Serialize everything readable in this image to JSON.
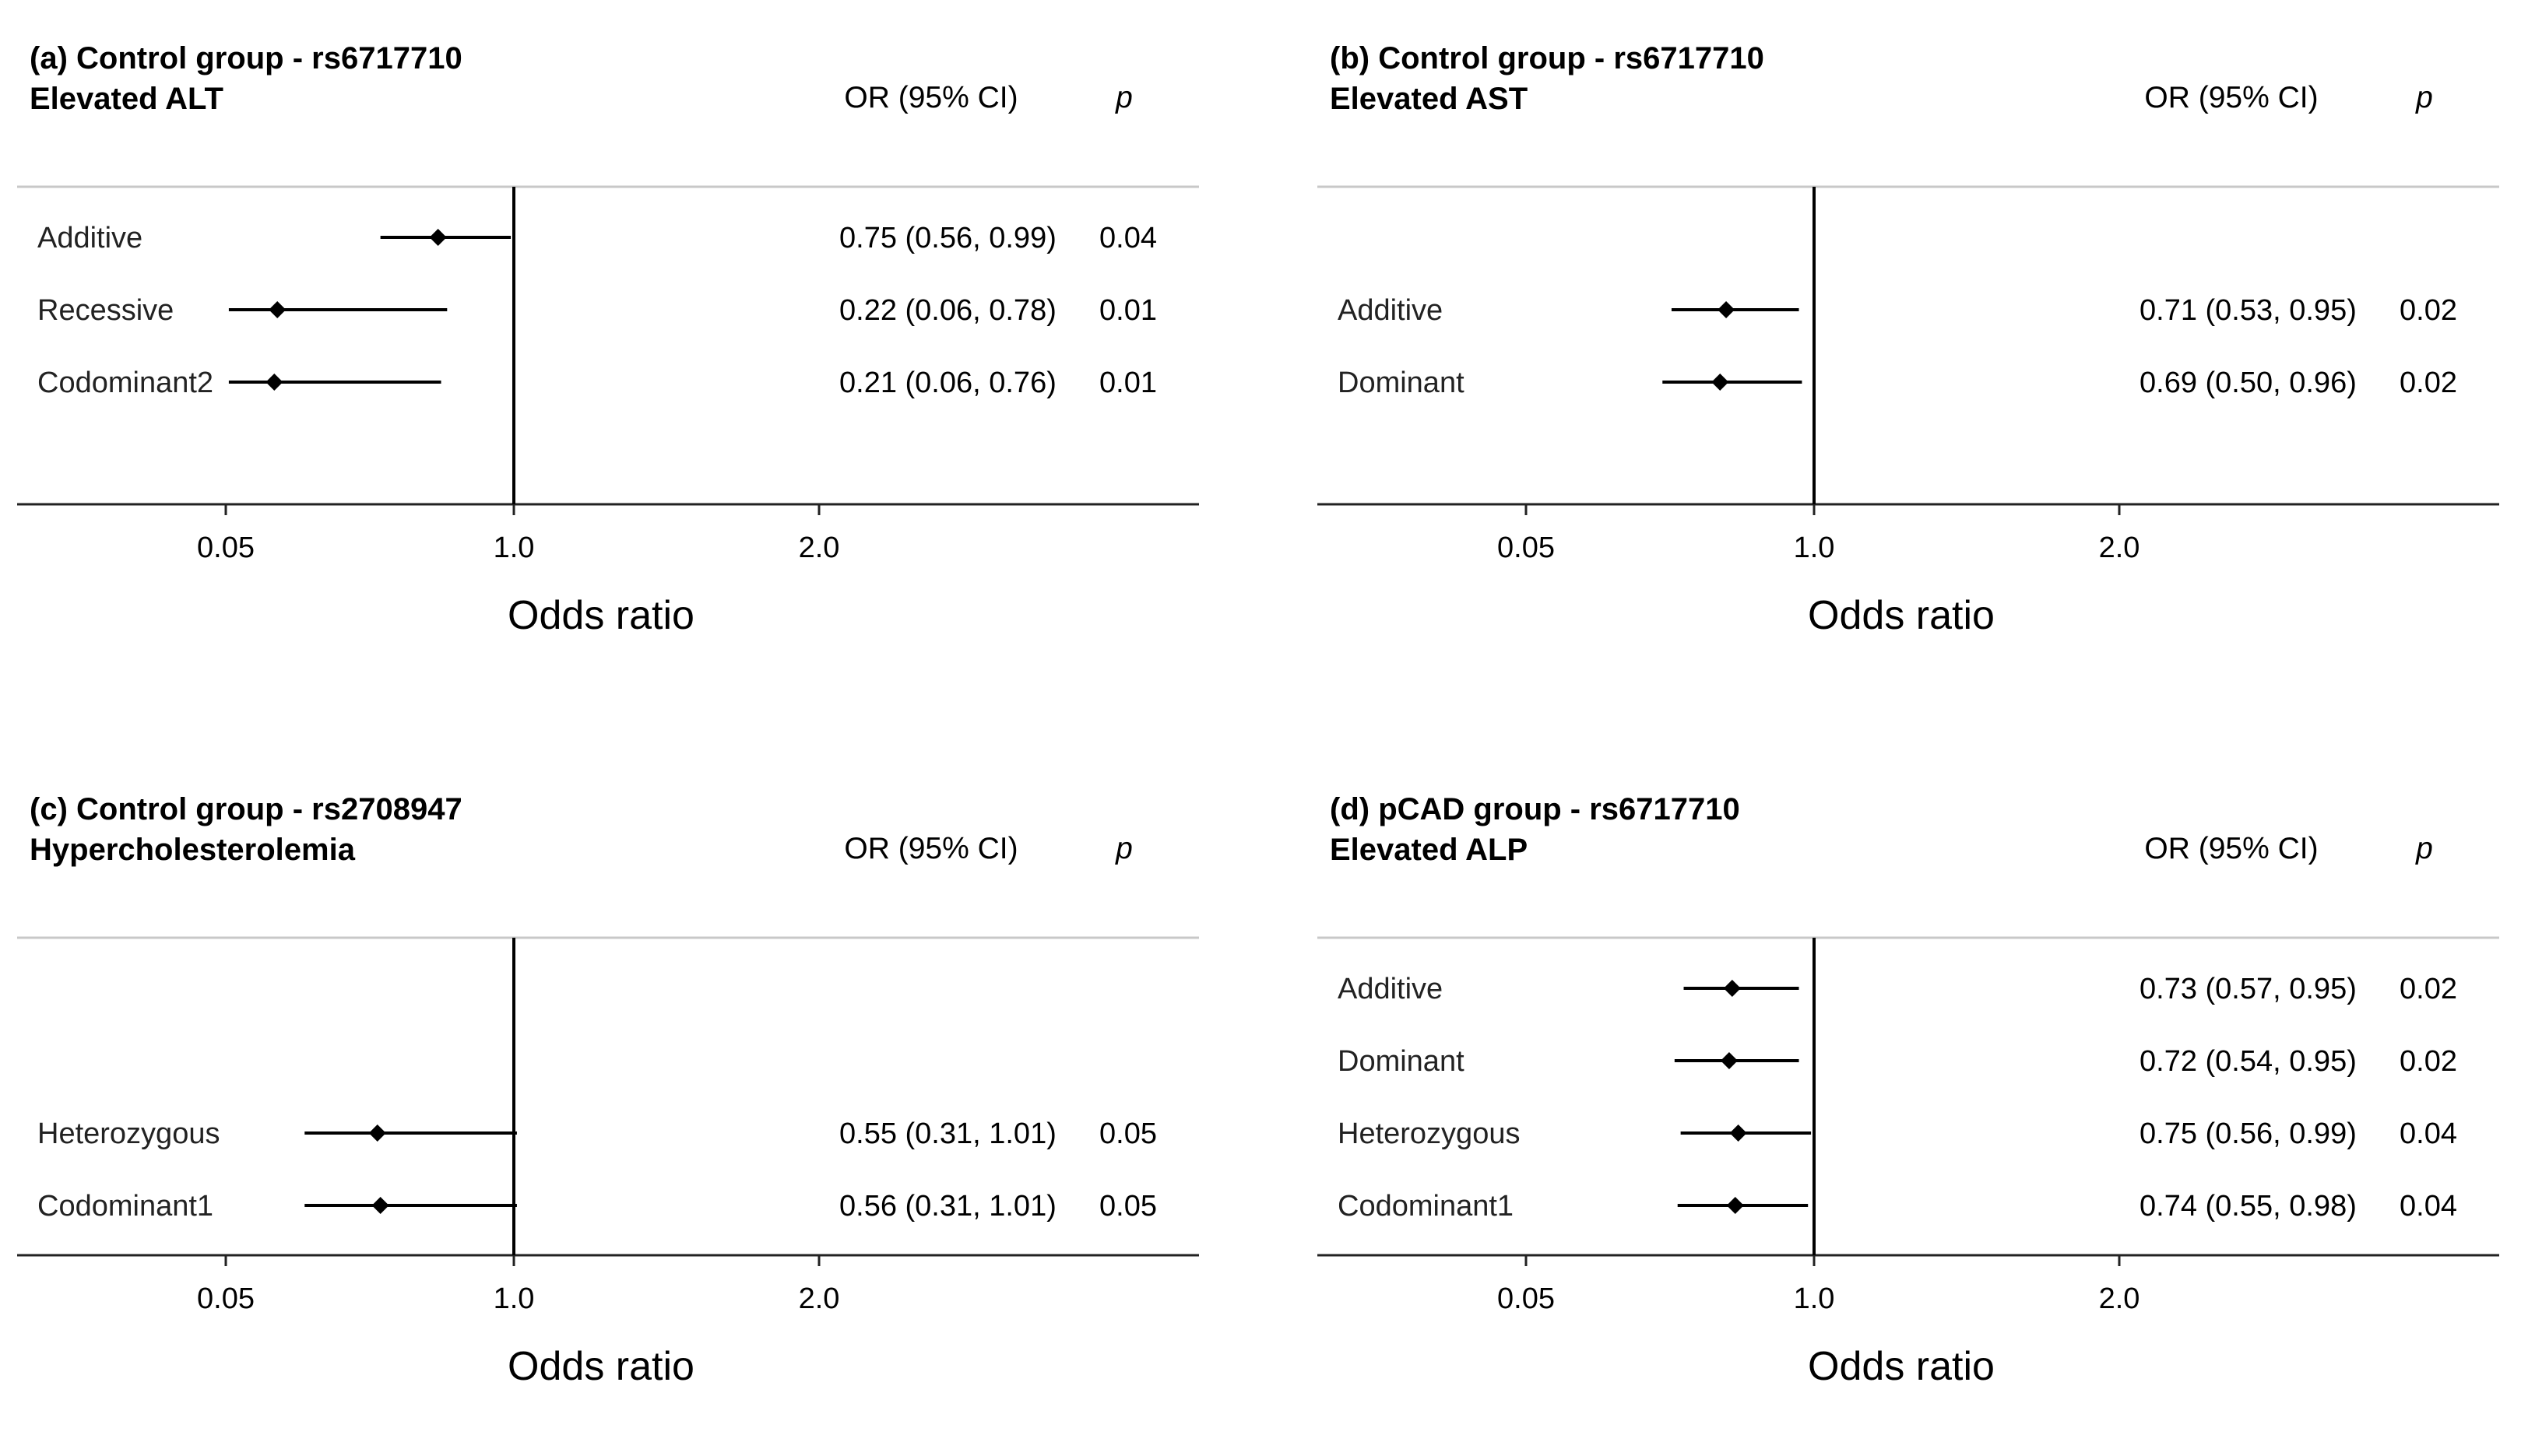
{
  "chart_data": [
    {
      "type": "forest",
      "title_line1": "(a) Control group - rs6717710",
      "title_line2": "Elevated ALT",
      "or_header": "OR (95% CI)",
      "p_header": "p",
      "xlabel": "Odds ratio",
      "ticks": [
        "0.05",
        "1.0",
        "2.0"
      ],
      "rows": [
        {
          "label": "Additive",
          "or": 0.75,
          "lo": 0.56,
          "hi": 0.99,
          "or_text": "0.75 (0.56, 0.99)",
          "p": "0.04",
          "slot": 1
        },
        {
          "label": "Recessive",
          "or": 0.22,
          "lo": 0.06,
          "hi": 0.78,
          "or_text": "0.22 (0.06, 0.78)",
          "p": "0.01",
          "slot": 2
        },
        {
          "label": "Codominant2",
          "or": 0.21,
          "lo": 0.06,
          "hi": 0.76,
          "or_text": "0.21 (0.06, 0.76)",
          "p": "0.01",
          "slot": 3
        }
      ]
    },
    {
      "type": "forest",
      "title_line1": "(b) Control group - rs6717710",
      "title_line2": "Elevated AST",
      "or_header": "OR (95% CI)",
      "p_header": "p",
      "xlabel": "Odds ratio",
      "ticks": [
        "0.05",
        "1.0",
        "2.0"
      ],
      "rows": [
        {
          "label": "Additive",
          "or": 0.71,
          "lo": 0.53,
          "hi": 0.95,
          "or_text": "0.71 (0.53, 0.95)",
          "p": "0.02",
          "slot": 2
        },
        {
          "label": "Dominant",
          "or": 0.69,
          "lo": 0.5,
          "hi": 0.96,
          "or_text": "0.69 (0.50, 0.96)",
          "p": "0.02",
          "slot": 3
        }
      ]
    },
    {
      "type": "forest",
      "title_line1": "(c) Control group - rs2708947",
      "title_line2": "Hypercholesterolemia",
      "or_header": "OR (95% CI)",
      "p_header": "p",
      "xlabel": "Odds ratio",
      "ticks": [
        "0.05",
        "1.0",
        "2.0"
      ],
      "rows": [
        {
          "label": "Heterozygous",
          "or": 0.55,
          "lo": 0.31,
          "hi": 1.01,
          "or_text": "0.55 (0.31, 1.01)",
          "p": "0.05",
          "slot": 3
        },
        {
          "label": "Codominant1",
          "or": 0.56,
          "lo": 0.31,
          "hi": 1.01,
          "or_text": "0.56 (0.31, 1.01)",
          "p": "0.05",
          "slot": 4
        }
      ]
    },
    {
      "type": "forest",
      "title_line1": "(d) pCAD group - rs6717710",
      "title_line2": "Elevated ALP",
      "or_header": "OR (95% CI)",
      "p_header": "p",
      "xlabel": "Odds ratio",
      "ticks": [
        "0.05",
        "1.0",
        "2.0"
      ],
      "rows": [
        {
          "label": "Additive",
          "or": 0.73,
          "lo": 0.57,
          "hi": 0.95,
          "or_text": "0.73 (0.57, 0.95)",
          "p": "0.02",
          "slot": 1
        },
        {
          "label": "Dominant",
          "or": 0.72,
          "lo": 0.54,
          "hi": 0.95,
          "or_text": "0.72 (0.54, 0.95)",
          "p": "0.02",
          "slot": 2
        },
        {
          "label": "Heterozygous",
          "or": 0.75,
          "lo": 0.56,
          "hi": 0.99,
          "or_text": "0.75 (0.56, 0.99)",
          "p": "0.04",
          "slot": 3
        },
        {
          "label": "Codominant1",
          "or": 0.74,
          "lo": 0.55,
          "hi": 0.98,
          "or_text": "0.74 (0.55, 0.98)",
          "p": "0.04",
          "slot": 4
        }
      ]
    }
  ]
}
